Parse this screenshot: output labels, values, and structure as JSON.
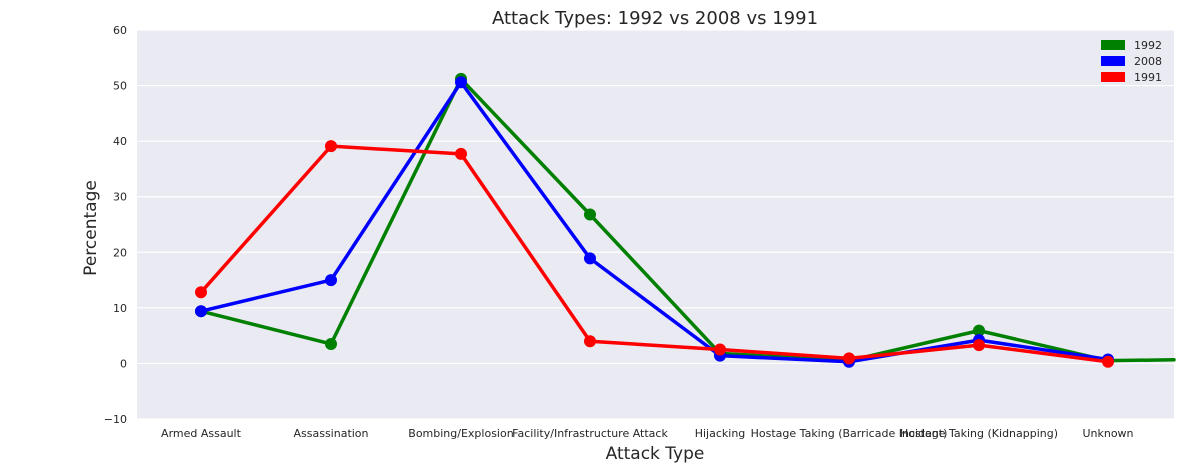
{
  "chart_data": {
    "type": "line",
    "title": "Attack Types: 1992 vs 2008 vs 1991",
    "xlabel": "Attack Type",
    "ylabel": "Percentage",
    "ylim": [
      -10,
      60
    ],
    "yticks": [
      "−10",
      "0",
      "10",
      "20",
      "30",
      "40",
      "50",
      "60"
    ],
    "ytick_values": [
      -10,
      0,
      10,
      20,
      30,
      40,
      50,
      60
    ],
    "grid": true,
    "legend_position": "top-right",
    "categories": [
      "Armed Assault",
      "Assassination",
      "Bombing/Explosion",
      "Facility/Infrastructure Attack",
      "Hijacking",
      "Hostage Taking (Barricade Incident)",
      "Hostage Taking (Kidnapping)",
      "Unknown"
    ],
    "series": [
      {
        "name": "1992",
        "color": "#008000",
        "values": [
          9.4,
          3.5,
          51.2,
          26.8,
          1.8,
          0.5,
          5.9,
          0.5
        ],
        "tail_value": 0.8
      },
      {
        "name": "2008",
        "color": "#0000ff",
        "values": [
          9.4,
          15.0,
          50.6,
          18.9,
          1.4,
          0.3,
          4.2,
          0.7
        ]
      },
      {
        "name": "1991",
        "color": "#ff0000",
        "values": [
          12.8,
          39.1,
          37.7,
          4.0,
          2.5,
          0.9,
          3.3,
          0.3
        ]
      }
    ]
  }
}
